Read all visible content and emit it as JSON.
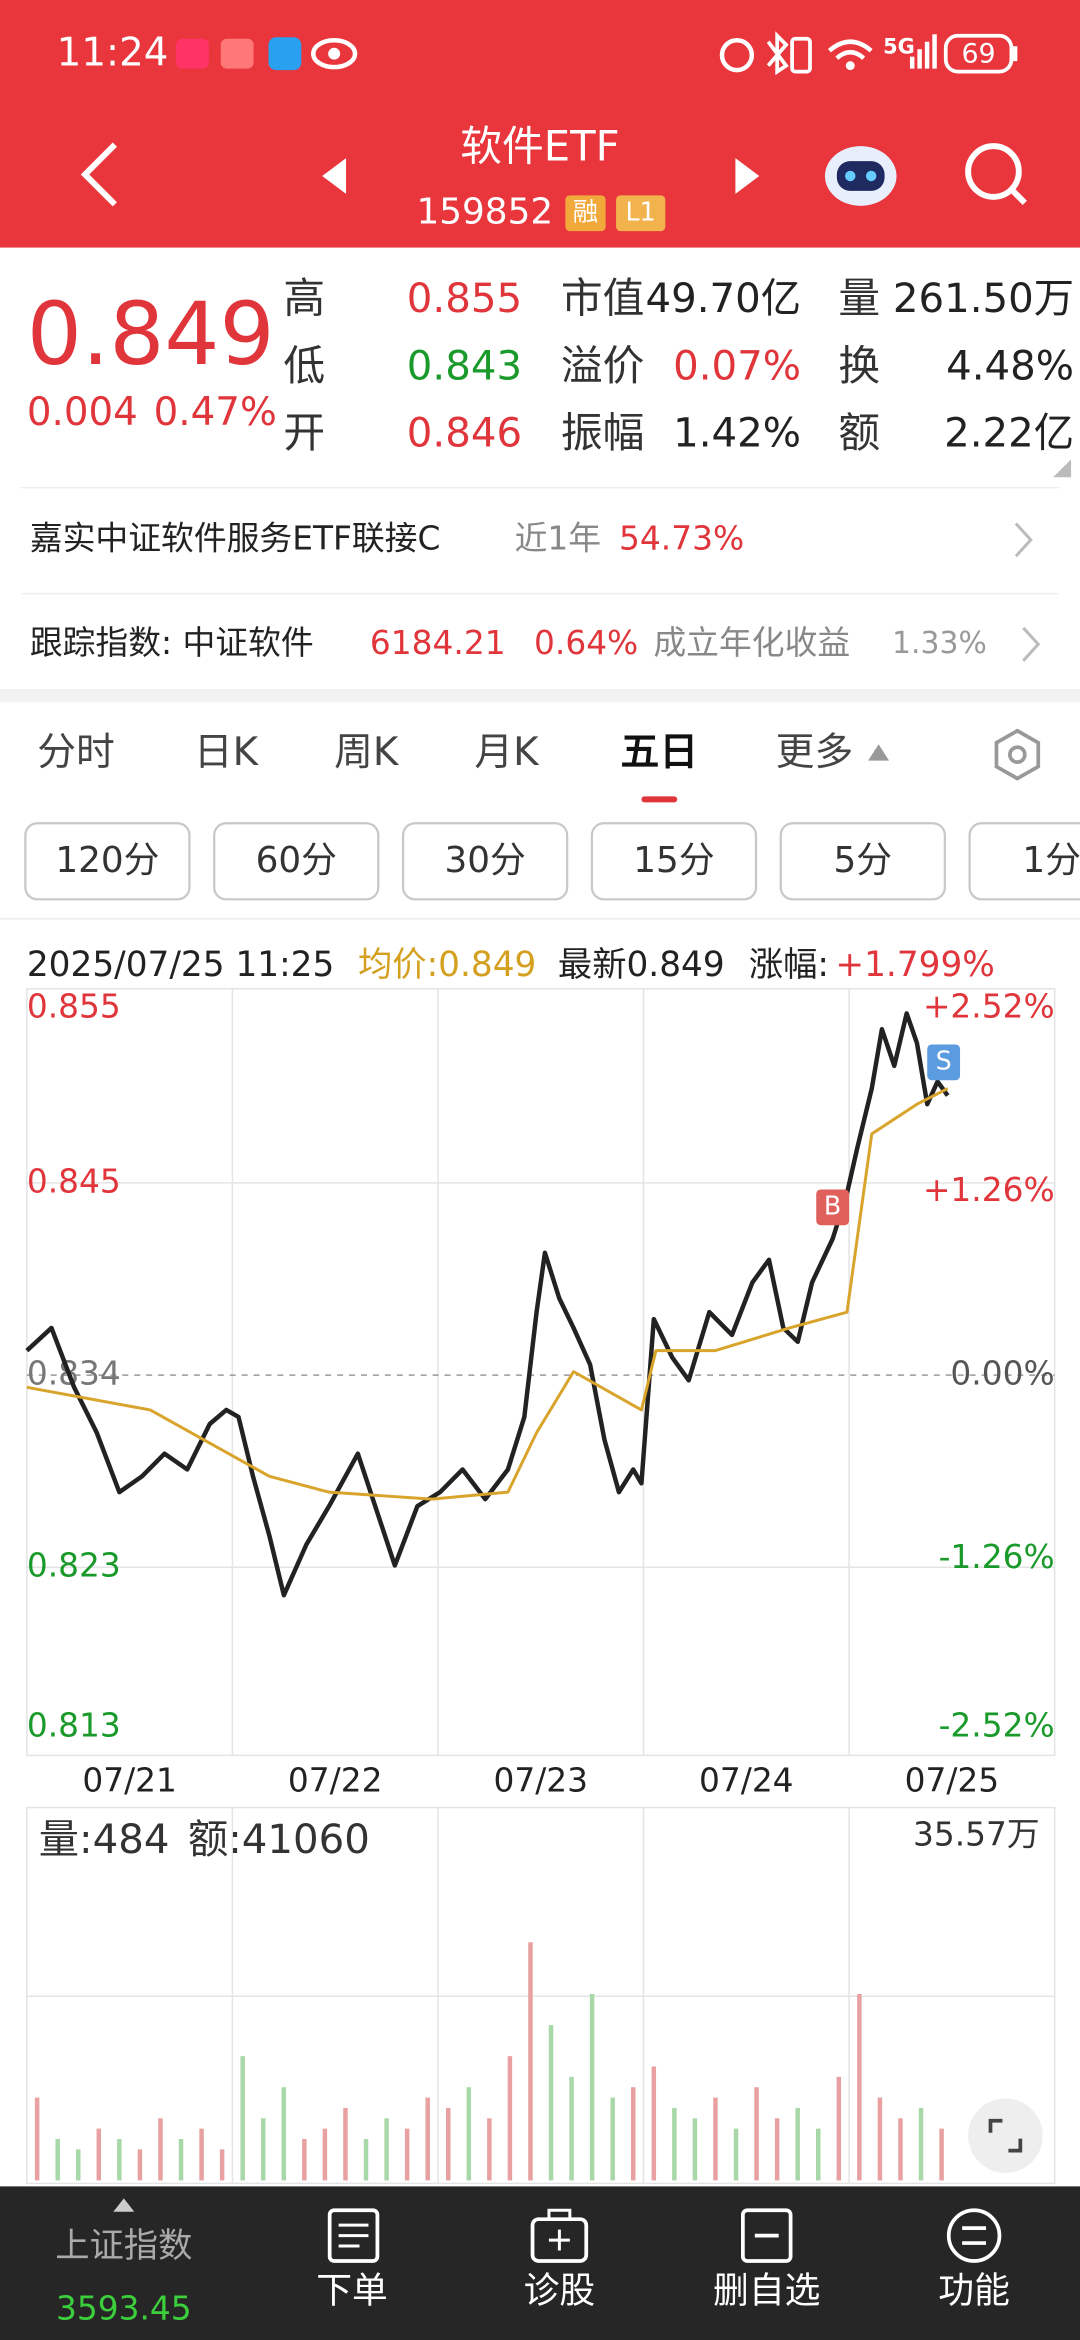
{
  "status_bar": {
    "time": "11:24",
    "network": "5G",
    "battery": "69"
  },
  "header": {
    "title": "软件ETF",
    "code": "159852",
    "badges": [
      "融",
      "L1"
    ]
  },
  "quote": {
    "price": "0.849",
    "change": "0.004",
    "change_pct": "0.47%",
    "stats": [
      [
        {
          "label": "高",
          "value": "0.855",
          "color": "#e0353b"
        },
        {
          "label": "市值",
          "value": "49.70亿",
          "color": "#222222"
        },
        {
          "label": "量",
          "value": "261.50万",
          "color": "#222222"
        }
      ],
      [
        {
          "label": "低",
          "value": "0.843",
          "color": "#1a9a2a"
        },
        {
          "label": "溢价",
          "value": "0.07%",
          "color": "#e0353b"
        },
        {
          "label": "换",
          "value": "4.48%",
          "color": "#222222"
        }
      ],
      [
        {
          "label": "开",
          "value": "0.846",
          "color": "#e0353b"
        },
        {
          "label": "振幅",
          "value": "1.42%",
          "color": "#222222"
        },
        {
          "label": "额",
          "value": "2.22亿",
          "color": "#222222"
        }
      ]
    ]
  },
  "fund": {
    "name": "嘉实中证软件服务ETF联接C",
    "period": "近1年",
    "return": "54.73%"
  },
  "index": {
    "label": "跟踪指数: 中证软件",
    "value": "6184.21",
    "change": "0.64%",
    "extra_label": "成立年化收益",
    "extra_value": "1.33%"
  },
  "tabs": {
    "items": [
      "分时",
      "日K",
      "周K",
      "月K",
      "五日",
      "更多"
    ],
    "active": 4
  },
  "intervals": [
    "120分",
    "60分",
    "30分",
    "15分",
    "5分",
    "1分"
  ],
  "quote_bar": {
    "datetime": "2025/07/25 11:25",
    "average": "均价:0.849",
    "latest": "最新0.849",
    "change_label": "涨幅:",
    "change_value": "+1.799%"
  },
  "chart_data": [
    {
      "type": "line",
      "xlim": [
        0,
        5
      ],
      "xticks": [
        {
          "value": 0.5,
          "label": "07/21"
        },
        {
          "value": 1.5,
          "label": "07/22"
        },
        {
          "value": 2.5,
          "label": "07/23"
        },
        {
          "value": 3.5,
          "label": "07/24"
        },
        {
          "value": 4.5,
          "label": "07/25"
        }
      ],
      "ylim": [
        0.813,
        0.855
      ],
      "yticks": [
        0.855,
        0.845,
        0.834,
        0.823,
        0.813
      ],
      "y2lim": [
        -2.52,
        2.52
      ],
      "y2ticks": [
        {
          "value": 2.52,
          "label": "+2.52%"
        },
        {
          "value": 1.26,
          "label": "+1.26%"
        },
        {
          "value": 0,
          "label": "0.00%"
        },
        {
          "value": -1.26,
          "label": "-1.26%"
        },
        {
          "value": -2.52,
          "label": "-2.52%"
        }
      ],
      "grid": true,
      "series": [
        {
          "color": "#222222",
          "x": [
            0,
            0.12,
            0.23,
            0.34,
            0.45,
            0.56,
            0.67,
            0.78,
            0.89,
            0.97,
            1.03,
            1.1,
            1.18,
            1.25,
            1.36,
            1.47,
            1.61,
            1.72,
            1.79,
            1.9,
            2.01,
            2.12,
            2.23,
            2.34,
            2.42,
            2.48,
            2.52,
            2.59,
            2.66,
            2.74,
            2.81,
            2.88,
            2.95,
            2.99,
            3.05,
            3.14,
            3.22,
            3.32,
            3.43,
            3.53,
            3.61,
            3.68,
            3.75,
            3.82,
            3.92,
            3.99,
            4.04,
            4.11,
            4.16,
            4.22,
            4.28,
            4.33,
            4.38,
            4.43,
            4.48
          ],
          "values": [
            0.8354,
            0.8367,
            0.8333,
            0.8307,
            0.8273,
            0.8282,
            0.8295,
            0.8286,
            0.8312,
            0.832,
            0.8316,
            0.8282,
            0.8248,
            0.8214,
            0.8243,
            0.8265,
            0.8295,
            0.8256,
            0.8231,
            0.8265,
            0.8273,
            0.8286,
            0.8269,
            0.8286,
            0.8316,
            0.8376,
            0.841,
            0.8384,
            0.8367,
            0.8346,
            0.8303,
            0.8273,
            0.8286,
            0.8278,
            0.8372,
            0.835,
            0.8337,
            0.8376,
            0.8363,
            0.8393,
            0.8406,
            0.8367,
            0.8359,
            0.8393,
            0.8418,
            0.8444,
            0.847,
            0.8504,
            0.8538,
            0.8517,
            0.8547,
            0.853,
            0.8495,
            0.8508,
            0.85
          ]
        },
        {
          "color": "#d9a42b",
          "x": [
            0,
            0.6,
            1.18,
            1.47,
            1.97,
            2.34,
            2.48,
            2.66,
            2.99,
            3.06,
            3.35,
            3.71,
            3.99,
            4.11,
            4.33,
            4.48
          ],
          "values": [
            0.8333,
            0.832,
            0.8282,
            0.8273,
            0.8269,
            0.8273,
            0.8307,
            0.8342,
            0.832,
            0.8354,
            0.8354,
            0.8367,
            0.8376,
            0.8478,
            0.8495,
            0.8504
          ]
        }
      ],
      "markers": [
        {
          "label": "B",
          "x": 3.92,
          "value": 0.8436,
          "color": "#e0605c"
        },
        {
          "label": "S",
          "x": 4.46,
          "value": 0.8519,
          "color": "#5b9be0"
        }
      ]
    },
    {
      "type": "bar",
      "volume_label": "量:484",
      "amount_label": "额:41060",
      "xlim": [
        0,
        5
      ],
      "ylim": [
        0,
        35.57
      ],
      "yticks": [
        {
          "value": 35.57,
          "label": "35.57万"
        }
      ],
      "x": [
        0.05,
        0.15,
        0.25,
        0.35,
        0.45,
        0.55,
        0.65,
        0.75,
        0.85,
        0.95,
        1.05,
        1.15,
        1.25,
        1.35,
        1.45,
        1.55,
        1.65,
        1.75,
        1.85,
        1.95,
        2.05,
        2.15,
        2.25,
        2.35,
        2.45,
        2.55,
        2.65,
        2.75,
        2.85,
        2.95,
        3.05,
        3.15,
        3.25,
        3.35,
        3.45,
        3.55,
        3.65,
        3.75,
        3.85,
        3.95,
        4.05,
        4.15,
        4.25,
        4.35,
        4.45
      ],
      "values": [
        8,
        4,
        3,
        5,
        4,
        3,
        6,
        4,
        5,
        3,
        12,
        6,
        9,
        4,
        5,
        7,
        4,
        6,
        5,
        8,
        7,
        9,
        6,
        12,
        23,
        15,
        10,
        18,
        8,
        9,
        11,
        7,
        6,
        8,
        5,
        9,
        6,
        7,
        5,
        10,
        18,
        8,
        6,
        7,
        5
      ],
      "colors": [
        "#e8a0a0",
        "#a8d8a8",
        "#a8d8a8",
        "#e8a0a0",
        "#a8d8a8",
        "#e8a0a0",
        "#e8a0a0",
        "#a8d8a8",
        "#e8a0a0",
        "#e8a0a0",
        "#a8d8a8",
        "#a8d8a8",
        "#a8d8a8",
        "#e8a0a0",
        "#e8a0a0",
        "#e8a0a0",
        "#a8d8a8",
        "#a8d8a8",
        "#e8a0a0",
        "#e8a0a0",
        "#e8a0a0",
        "#a8d8a8",
        "#e8a0a0",
        "#e8a0a0",
        "#e8a0a0",
        "#a8d8a8",
        "#a8d8a8",
        "#a8d8a8",
        "#a8d8a8",
        "#e8a0a0",
        "#e8a0a0",
        "#a8d8a8",
        "#a8d8a8",
        "#e8a0a0",
        "#a8d8a8",
        "#e8a0a0",
        "#e8a0a0",
        "#a8d8a8",
        "#a8d8a8",
        "#e8a0a0",
        "#e8a0a0",
        "#e8a0a0",
        "#e8a0a0",
        "#a8d8a8",
        "#e8a0a0"
      ]
    }
  ],
  "bottom_nav": {
    "index_name": "上证指数",
    "index_value": "3593.45",
    "items": [
      "下单",
      "诊股",
      "删自选",
      "功能"
    ]
  }
}
